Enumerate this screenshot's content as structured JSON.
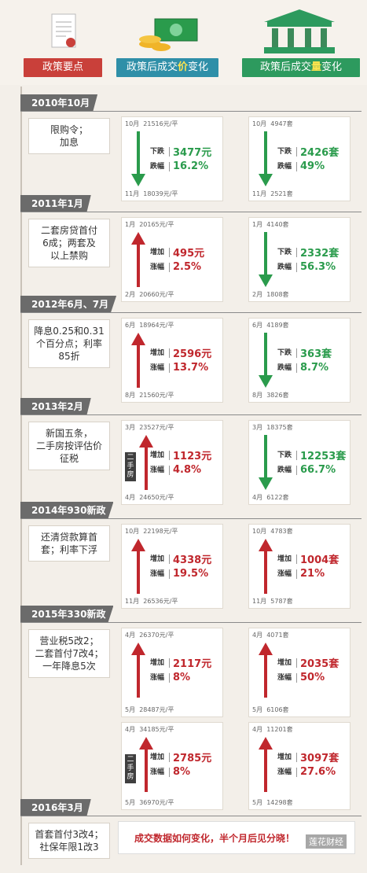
{
  "header": {
    "tab1": "政策要点",
    "tab2_prefix": "政策后成交",
    "tab2_em": "价",
    "tab2_suffix": "变化",
    "tab3_prefix": "政策后成交",
    "tab3_em": "量",
    "tab3_suffix": "变化"
  },
  "colors": {
    "up": "#c0272d",
    "down": "#2a9b4c",
    "price_tab": "#2f8fa8",
    "volume_tab": "#2d9a5e",
    "policy_tab": "#c9403a"
  },
  "sections": [
    {
      "title": "2010年10月",
      "policy": "限购令；\n加息",
      "price": {
        "direction": "down",
        "start_label": "10月",
        "start_value": "21516元/平",
        "end_label": "11月",
        "end_value": "18039元/平",
        "change_label": "下跌",
        "change_value": "3477元",
        "rate_label": "跌幅",
        "rate_value": "16.2%"
      },
      "volume": {
        "direction": "down",
        "start_label": "10月",
        "start_value": "4947套",
        "end_label": "11月",
        "end_value": "2521套",
        "change_label": "下跌",
        "change_value": "2426套",
        "rate_label": "跌幅",
        "rate_value": "49%"
      }
    },
    {
      "title": "2011年1月",
      "policy": "二套房贷首付\n6成；两套及\n以上禁购",
      "price": {
        "direction": "up",
        "start_label": "1月",
        "start_value": "20165元/平",
        "end_label": "2月",
        "end_value": "20660元/平",
        "change_label": "增加",
        "change_value": "495元",
        "rate_label": "涨幅",
        "rate_value": "2.5%"
      },
      "volume": {
        "direction": "down",
        "start_label": "1月",
        "start_value": "4140套",
        "end_label": "2月",
        "end_value": "1808套",
        "change_label": "下跌",
        "change_value": "2332套",
        "rate_label": "跌幅",
        "rate_value": "56.3%"
      }
    },
    {
      "title": "2012年6月、7月",
      "policy": "降息0.25和0.31\n个百分点；利率\n85折",
      "price": {
        "direction": "up",
        "start_label": "6月",
        "start_value": "18964元/平",
        "end_label": "8月",
        "end_value": "21560元/平",
        "change_label": "增加",
        "change_value": "2596元",
        "rate_label": "涨幅",
        "rate_value": "13.7%"
      },
      "volume": {
        "direction": "down",
        "start_label": "6月",
        "start_value": "4189套",
        "end_label": "8月",
        "end_value": "3826套",
        "change_label": "下跌",
        "change_value": "363套",
        "rate_label": "跌幅",
        "rate_value": "8.7%"
      }
    },
    {
      "title": "2013年2月",
      "policy": "新国五条，\n二手房按评估价\n征税",
      "price": {
        "direction": "up",
        "badge": "二手房",
        "start_label": "3月",
        "start_value": "23527元/平",
        "end_label": "4月",
        "end_value": "24650元/平",
        "change_label": "增加",
        "change_value": "1123元",
        "rate_label": "涨幅",
        "rate_value": "4.8%"
      },
      "volume": {
        "direction": "down",
        "start_label": "3月",
        "start_value": "18375套",
        "end_label": "4月",
        "end_value": "6122套",
        "change_label": "下跌",
        "change_value": "12253套",
        "rate_label": "跌幅",
        "rate_value": "66.7%"
      }
    },
    {
      "title": "2014年930新政",
      "policy": "还清贷款算首\n套；利率下浮",
      "price": {
        "direction": "up",
        "start_label": "10月",
        "start_value": "22198元/平",
        "end_label": "11月",
        "end_value": "26536元/平",
        "change_label": "增加",
        "change_value": "4338元",
        "rate_label": "涨幅",
        "rate_value": "19.5%"
      },
      "volume": {
        "direction": "up",
        "start_label": "10月",
        "start_value": "4783套",
        "end_label": "11月",
        "end_value": "5787套",
        "change_label": "增加",
        "change_value": "1004套",
        "rate_label": "涨幅",
        "rate_value": "21%"
      }
    },
    {
      "title": "2015年330新政",
      "policy": "营业税5改2；\n二套首付7改4；\n一年降息5次",
      "price": {
        "direction": "up",
        "start_label": "4月",
        "start_value": "26370元/平",
        "end_label": "5月",
        "end_value": "28487元/平",
        "change_label": "增加",
        "change_value": "2117元",
        "rate_label": "涨幅",
        "rate_value": "8%"
      },
      "volume": {
        "direction": "up",
        "start_label": "4月",
        "start_value": "4071套",
        "end_label": "5月",
        "end_value": "6106套",
        "change_label": "增加",
        "change_value": "2035套",
        "rate_label": "涨幅",
        "rate_value": "50%"
      },
      "price2": {
        "direction": "up",
        "badge": "二手房",
        "start_label": "4月",
        "start_value": "34185元/平",
        "end_label": "5月",
        "end_value": "36970元/平",
        "change_label": "增加",
        "change_value": "2785元",
        "rate_label": "涨幅",
        "rate_value": "8%"
      },
      "volume2": {
        "direction": "up",
        "start_label": "4月",
        "start_value": "11201套",
        "end_label": "5月",
        "end_value": "14298套",
        "change_label": "增加",
        "change_value": "3097套",
        "rate_label": "涨幅",
        "rate_value": "27.6%"
      }
    },
    {
      "title": "2016年3月",
      "policy": "首套首付3改4；\n社保年限1改3",
      "final_text": "成交数据如何变化，半个月后见分晓！"
    }
  ],
  "watermark": "莲花财经"
}
